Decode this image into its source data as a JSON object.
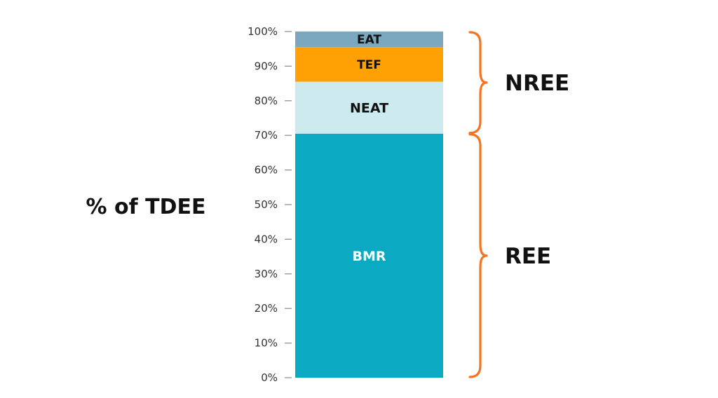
{
  "chart_data": {
    "type": "bar",
    "stacked": true,
    "ylabel": "% of TDEE",
    "ylim": [
      0,
      100
    ],
    "yticks": [
      "0%",
      "10%",
      "20%",
      "30%",
      "40%",
      "50%",
      "60%",
      "70%",
      "80%",
      "90%",
      "100%"
    ],
    "grid": false,
    "series": [
      {
        "name": "BMR",
        "value": 70.5,
        "color": "#0ba9c2",
        "label_color": "#ffffff"
      },
      {
        "name": "NEAT",
        "value": 15,
        "color": "#cdebee",
        "label_color": "#111111"
      },
      {
        "name": "TEF",
        "value": 10,
        "color": "#ffa005",
        "label_color": "#111111"
      },
      {
        "name": "EAT",
        "value": 4.5,
        "color": "#7ba8bf",
        "label_color": "#111111"
      }
    ],
    "annotations": [
      {
        "label": "NREE",
        "from": 70.5,
        "to": 100
      },
      {
        "label": "REE",
        "from": 0,
        "to": 70.5
      }
    ],
    "brace_color": "#f57323"
  }
}
